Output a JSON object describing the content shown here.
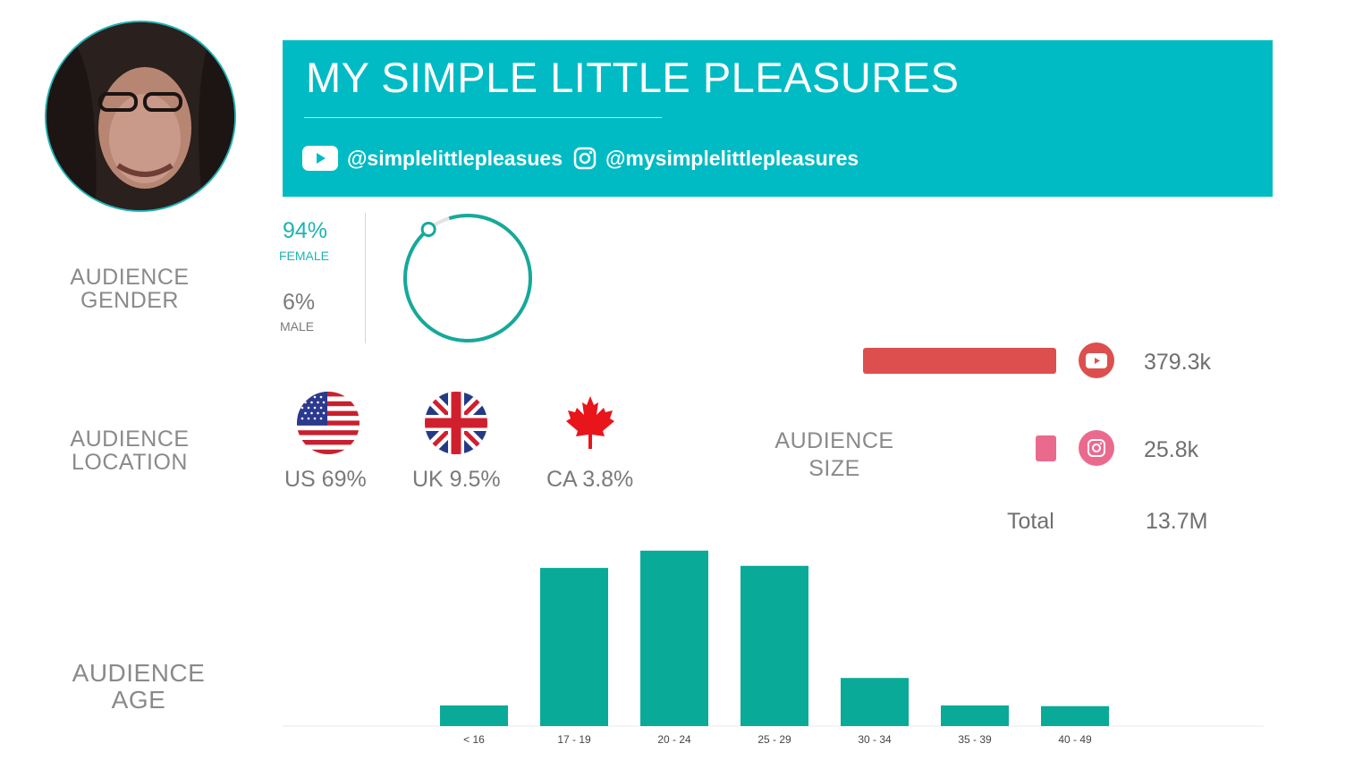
{
  "banner": {
    "title": "MY SIMPLE LITTLE PLEASURES",
    "youtube_handle": "@simplelittlepleasues",
    "instagram_handle": "@mysimplelittlepleasures"
  },
  "gender": {
    "label_line1": "AUDIENCE",
    "label_line2": "GENDER",
    "female_pct": "94%",
    "female_label": "FEMALE",
    "male_pct": "6%",
    "male_label": "MALE",
    "female_fraction": 0.94
  },
  "location": {
    "label_line1": "AUDIENCE",
    "label_line2": "LOCATION",
    "countries": [
      {
        "text": "US 69%",
        "flag": "us-flag-icon"
      },
      {
        "text": "UK 9.5%",
        "flag": "uk-flag-icon"
      },
      {
        "text": "CA 3.8%",
        "flag": "canada-flag-icon"
      }
    ]
  },
  "size": {
    "label_line1": "AUDIENCE",
    "label_line2": "SIZE",
    "youtube_value": "379.3k",
    "instagram_value": "25.8k",
    "total_label": "Total",
    "total_value": "13.7M",
    "youtube_color": "#dd4f4f",
    "instagram_color": "#ea6a8e"
  },
  "age": {
    "label_line1": "AUDIENCE",
    "label_line2": "AGE"
  },
  "colors": {
    "teal_banner": "#00bbc4",
    "teal_bar": "#0aaa98"
  },
  "chart_data": {
    "type": "bar",
    "categories": [
      "< 16",
      "17 - 19",
      "20 - 24",
      "25 - 29",
      "30 - 34",
      "35 - 39",
      "40 - 49"
    ],
    "values": [
      3,
      23,
      25.5,
      23.3,
      7,
      3,
      2.9
    ],
    "ylim": [
      0,
      26
    ],
    "grid": false,
    "title": "",
    "xlabel": "",
    "ylabel": ""
  }
}
